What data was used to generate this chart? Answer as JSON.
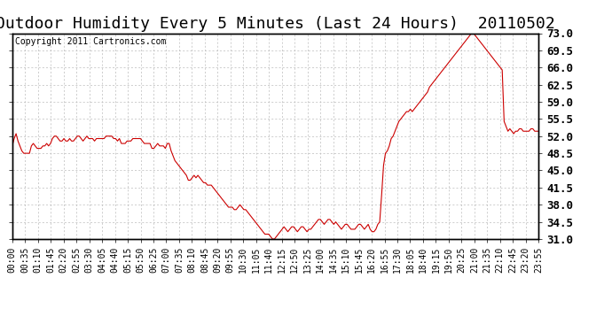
{
  "title": "Outdoor Humidity Every 5 Minutes (Last 24 Hours)  20110502",
  "copyright_text": "Copyright 2011 Cartronics.com",
  "line_color": "#cc0000",
  "bg_color": "#ffffff",
  "grid_color": "#bbbbbb",
  "ylim": [
    31.0,
    73.0
  ],
  "yticks": [
    31.0,
    34.5,
    38.0,
    41.5,
    45.0,
    48.5,
    52.0,
    55.5,
    59.0,
    62.5,
    66.0,
    69.5,
    73.0
  ],
  "title_fontsize": 13,
  "copyright_fontsize": 7,
  "tick_fontsize": 7,
  "humidity_data": [
    50.0,
    51.5,
    52.5,
    51.0,
    50.0,
    49.0,
    48.5,
    48.5,
    48.5,
    48.5,
    50.0,
    50.5,
    50.0,
    49.5,
    49.5,
    49.5,
    50.0,
    50.0,
    50.5,
    50.0,
    50.5,
    51.5,
    52.0,
    52.0,
    51.5,
    51.0,
    51.0,
    51.5,
    51.0,
    51.0,
    51.5,
    51.0,
    51.0,
    51.5,
    52.0,
    52.0,
    51.5,
    51.0,
    51.5,
    52.0,
    51.5,
    51.5,
    51.5,
    51.0,
    51.5,
    51.5,
    51.5,
    51.5,
    51.5,
    52.0,
    52.0,
    52.0,
    52.0,
    51.5,
    51.5,
    51.0,
    51.5,
    50.5,
    50.5,
    50.5,
    51.0,
    51.0,
    51.0,
    51.5,
    51.5,
    51.5,
    51.5,
    51.5,
    51.0,
    50.5,
    50.5,
    50.5,
    50.5,
    49.5,
    49.5,
    50.0,
    50.5,
    50.0,
    50.0,
    50.0,
    49.5,
    50.5,
    50.5,
    49.0,
    48.0,
    47.0,
    46.5,
    46.0,
    45.5,
    45.0,
    44.5,
    44.0,
    43.0,
    43.0,
    43.5,
    44.0,
    43.5,
    44.0,
    43.5,
    43.0,
    42.5,
    42.5,
    42.0,
    42.0,
    42.0,
    41.5,
    41.0,
    40.5,
    40.0,
    39.5,
    39.0,
    38.5,
    38.0,
    37.5,
    37.5,
    37.5,
    37.0,
    37.0,
    37.5,
    38.0,
    37.5,
    37.0,
    37.0,
    36.5,
    36.0,
    35.5,
    35.0,
    34.5,
    34.0,
    33.5,
    33.0,
    32.5,
    32.0,
    32.0,
    32.0,
    31.5,
    31.0,
    31.0,
    31.5,
    32.0,
    32.5,
    33.0,
    33.5,
    33.0,
    32.5,
    33.0,
    33.5,
    33.5,
    33.0,
    32.5,
    33.0,
    33.5,
    33.5,
    33.0,
    32.5,
    33.0,
    33.0,
    33.5,
    34.0,
    34.5,
    35.0,
    35.0,
    34.5,
    34.0,
    34.5,
    35.0,
    35.0,
    34.5,
    34.0,
    34.5,
    34.0,
    33.5,
    33.0,
    33.5,
    34.0,
    34.0,
    33.5,
    33.0,
    33.0,
    33.0,
    33.5,
    34.0,
    34.0,
    33.5,
    33.0,
    33.5,
    34.0,
    33.0,
    32.5,
    32.5,
    33.0,
    34.0,
    34.5,
    40.0,
    46.0,
    48.5,
    49.0,
    50.0,
    51.5,
    52.0,
    53.0,
    54.0,
    55.0,
    55.5,
    56.0,
    56.5,
    57.0,
    57.0,
    57.5,
    57.0,
    57.5,
    58.0,
    58.5,
    59.0,
    59.5,
    60.0,
    60.5,
    61.0,
    62.0,
    62.5,
    63.0,
    63.5,
    64.0,
    64.5,
    65.0,
    65.5,
    66.0,
    66.5,
    67.0,
    67.5,
    68.0,
    68.5,
    69.0,
    69.5,
    70.0,
    70.5,
    71.0,
    71.5,
    72.0,
    72.5,
    73.0,
    73.0,
    72.5,
    72.0,
    71.5,
    71.0,
    70.5,
    70.0,
    69.5,
    69.0,
    68.5,
    68.0,
    67.5,
    67.0,
    66.5,
    66.0,
    65.5,
    55.0,
    54.0,
    53.0,
    53.5,
    53.0,
    52.5,
    53.0,
    53.0,
    53.5,
    53.5,
    53.0,
    53.0,
    53.0,
    53.0,
    53.5,
    53.5,
    53.0,
    53.0,
    53.0
  ],
  "x_tick_labels": [
    "00:00",
    "00:35",
    "01:10",
    "01:45",
    "02:20",
    "02:55",
    "03:30",
    "04:05",
    "04:40",
    "05:15",
    "05:50",
    "06:25",
    "07:00",
    "07:35",
    "08:10",
    "08:45",
    "09:20",
    "09:55",
    "10:30",
    "11:05",
    "11:40",
    "12:15",
    "12:50",
    "13:25",
    "14:00",
    "14:35",
    "15:10",
    "15:45",
    "16:20",
    "16:55",
    "17:30",
    "18:05",
    "18:40",
    "19:15",
    "19:50",
    "20:25",
    "21:00",
    "21:35",
    "22:10",
    "22:45",
    "23:20",
    "23:55"
  ]
}
